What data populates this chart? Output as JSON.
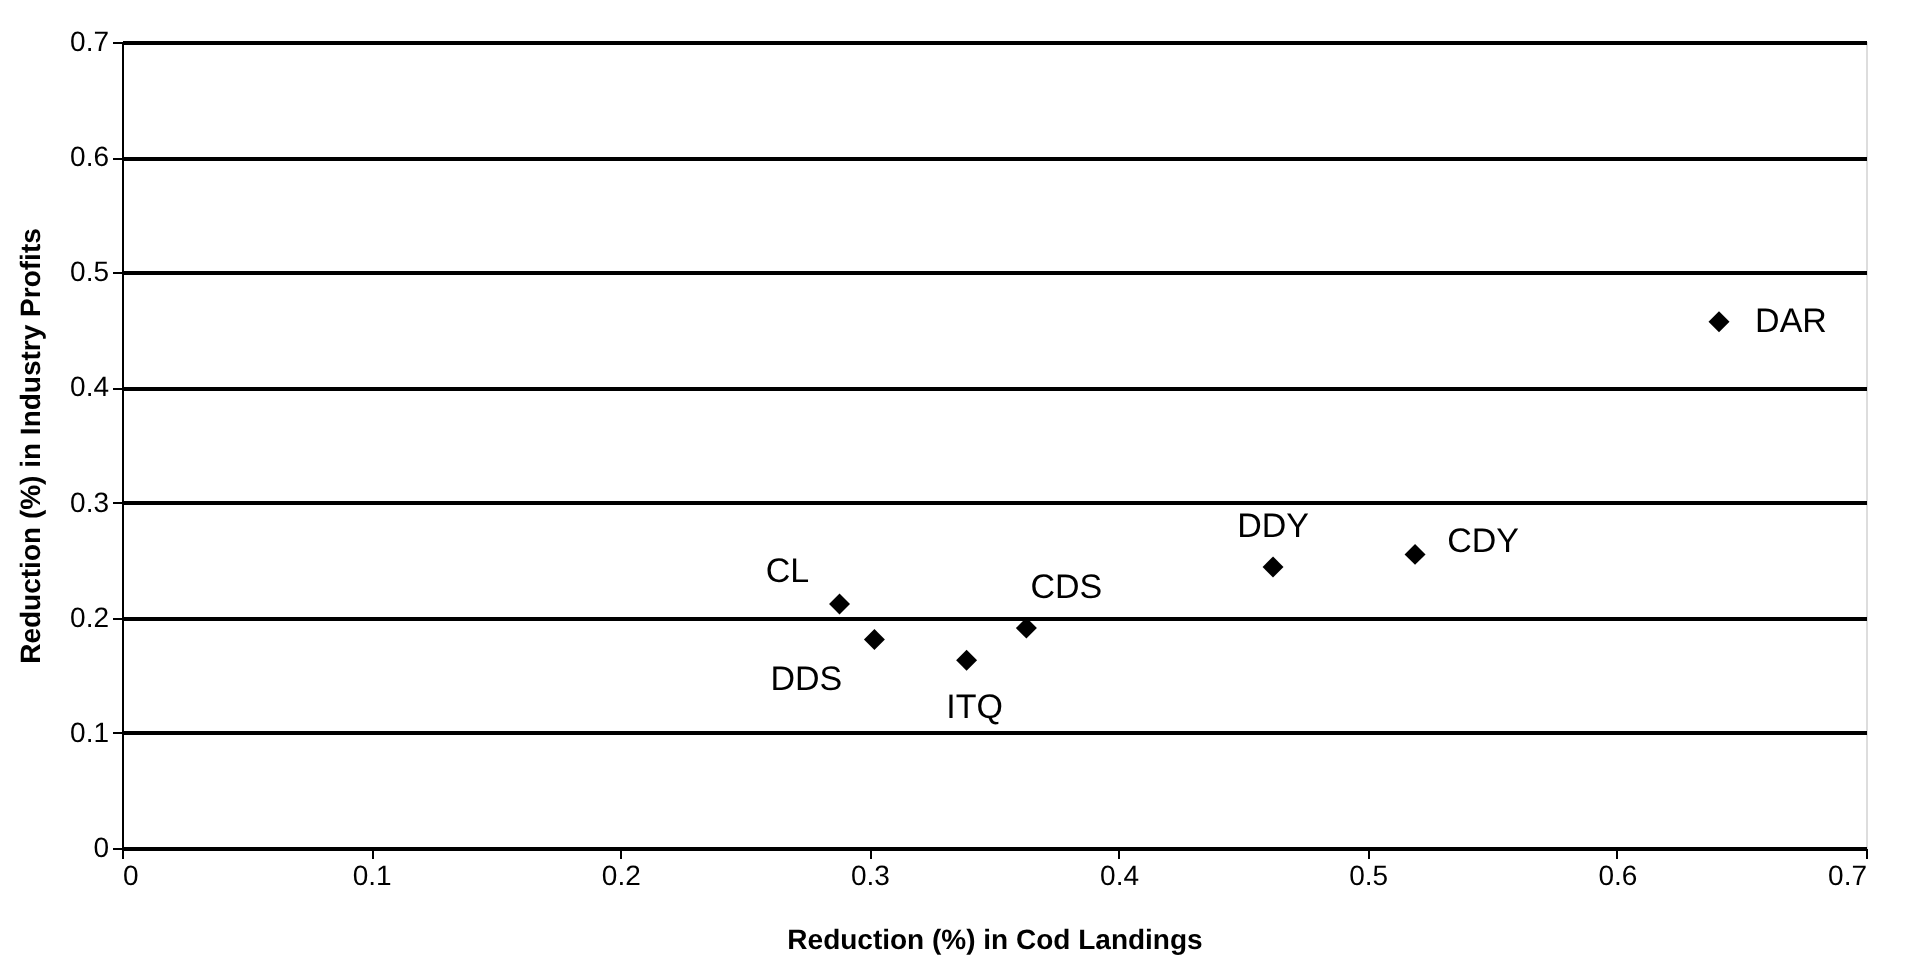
{
  "chart_data": {
    "type": "scatter",
    "xlabel": "Reduction (%) in Cod Landings",
    "ylabel": "Reduction (%) in Industry Profits",
    "x": [
      0.288,
      0.302,
      0.339,
      0.363,
      0.462,
      0.519,
      0.641
    ],
    "series": [
      {
        "color": "#000000",
        "values": [
          0.212,
          0.181,
          0.163,
          0.191,
          0.244,
          0.255,
          0.457
        ]
      }
    ],
    "annotations": [
      {
        "text": "CL",
        "x": 0.288,
        "y": 0.212
      },
      {
        "text": "DDS",
        "x": 0.302,
        "y": 0.181
      },
      {
        "text": "ITQ",
        "x": 0.339,
        "y": 0.163
      },
      {
        "text": "CDS",
        "x": 0.363,
        "y": 0.191
      },
      {
        "text": "DDY",
        "x": 0.462,
        "y": 0.244
      },
      {
        "text": "CDY",
        "x": 0.519,
        "y": 0.255
      },
      {
        "text": "DAR",
        "x": 0.641,
        "y": 0.457
      }
    ],
    "xlim": [
      0,
      0.7
    ],
    "xticks": [
      0,
      0.1,
      0.2,
      0.3,
      0.4,
      0.5,
      0.6,
      0.7
    ],
    "ylim": [
      0,
      0.7
    ],
    "yticks": [
      0,
      0.1,
      0.2,
      0.3,
      0.4,
      0.5,
      0.6,
      0.7
    ],
    "grid": "y",
    "marker": "diamond"
  }
}
